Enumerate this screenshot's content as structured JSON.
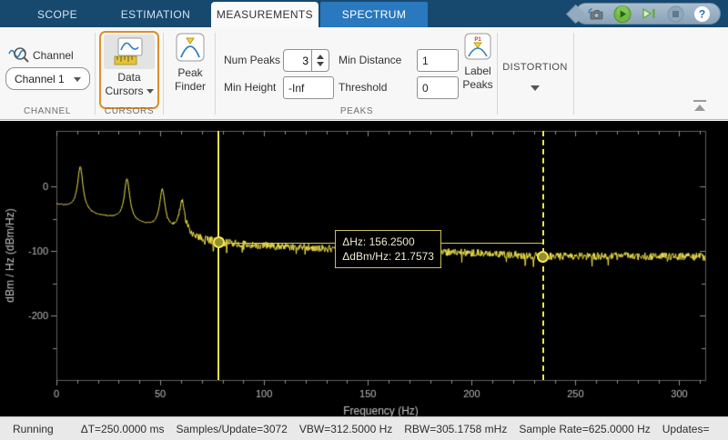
{
  "tabbar": {
    "tabs": [
      {
        "label": "SCOPE"
      },
      {
        "label": "ESTIMATION"
      },
      {
        "label": "MEASUREMENTS"
      },
      {
        "label": "SPECTRUM"
      }
    ],
    "active_tab": "MEASUREMENTS",
    "accent_tab": "SPECTRUM",
    "quick_access": {
      "help_glyph": "?"
    }
  },
  "ribbon": {
    "channel": {
      "label": "Channel",
      "dropdown_value": "Channel 1",
      "section_label": "CHANNEL"
    },
    "cursors": {
      "button_label_line1": "Data",
      "button_label_line2": "Cursors",
      "section_label": "CURSORS",
      "highlighted": true,
      "highlight_color": "#de8e2b"
    },
    "peak_finder": {
      "label_line1": "Peak",
      "label_line2": "Finder"
    },
    "peaks": {
      "section_label": "PEAKS",
      "num_peaks": {
        "label": "Num Peaks",
        "value": "3"
      },
      "min_height": {
        "label": "Min Height",
        "value": "-Inf"
      },
      "min_distance": {
        "label": "Min Distance",
        "value": "1"
      },
      "threshold": {
        "label": "Threshold",
        "value": "0"
      },
      "label_peaks": {
        "label_line1": "Label",
        "label_line2": "Peaks",
        "icon_badge": "P1"
      }
    },
    "distortion": {
      "label": "DISTORTION"
    }
  },
  "chart_data": {
    "type": "line",
    "title": "",
    "xlabel": "Frequency (Hz)",
    "ylabel": "dBm / Hz (dBm/Hz)",
    "xlim": [
      0,
      312.5
    ],
    "ylim": [
      -300,
      86
    ],
    "x_major_ticks": [
      0,
      50,
      100,
      150,
      200,
      250,
      300
    ],
    "x_minor_step": 10,
    "y_major_ticks": [
      0,
      -100,
      -200
    ],
    "y_minor_ticks": [
      -50,
      -150,
      -250
    ],
    "grid": false,
    "background": "#000000",
    "trace_color": "#f0e24b",
    "axis_color": "#8c8c8c",
    "tick_label_color": "#bdbdbd",
    "baseline_points": [
      [
        0,
        -28
      ],
      [
        6,
        -33
      ],
      [
        17,
        -44
      ],
      [
        28,
        -50
      ],
      [
        42,
        -60
      ],
      [
        57,
        -70
      ],
      [
        68,
        -81
      ],
      [
        78.125,
        -87
      ],
      [
        95,
        -91
      ],
      [
        120,
        -95
      ],
      [
        150,
        -98
      ],
      [
        180,
        -101
      ],
      [
        210,
        -104
      ],
      [
        234.375,
        -108.7573
      ],
      [
        270,
        -108
      ],
      [
        312.5,
        -109
      ]
    ],
    "peaks": [
      {
        "freq": 11.5,
        "level": 30
      },
      {
        "freq": 34,
        "level": 11
      },
      {
        "freq": 51,
        "level": -6
      },
      {
        "freq": 60.5,
        "level": -23
      }
    ],
    "peak_width_hz": 1.6,
    "noise": {
      "seed": 9,
      "amp_smooth": 0.9,
      "amp_floor": 6.0,
      "transition_start_hz": 52,
      "transition_end_hz": 66,
      "spike_prob": 0.015,
      "spike_gain": 1.9,
      "step_hz": 0.25
    },
    "cursors": [
      {
        "hz": 78.125,
        "dbm": -87.0,
        "style": "solid"
      },
      {
        "hz": 234.375,
        "dbm": -108.7573,
        "style": "dashed"
      }
    ],
    "cursor_color": "#f0e24b",
    "annotation": {
      "line1": "ΔHz: 156.2500",
      "line2": "ΔdBm/Hz: 21.7573"
    }
  },
  "status_bar": {
    "state": "Running",
    "metrics": [
      "ΔT=250.0000 ms",
      "Samples/Update=3072",
      "VBW=312.5000 Hz",
      "RBW=305.1758 mHz",
      "Sample Rate=625.0000 Hz",
      "Updates="
    ]
  }
}
